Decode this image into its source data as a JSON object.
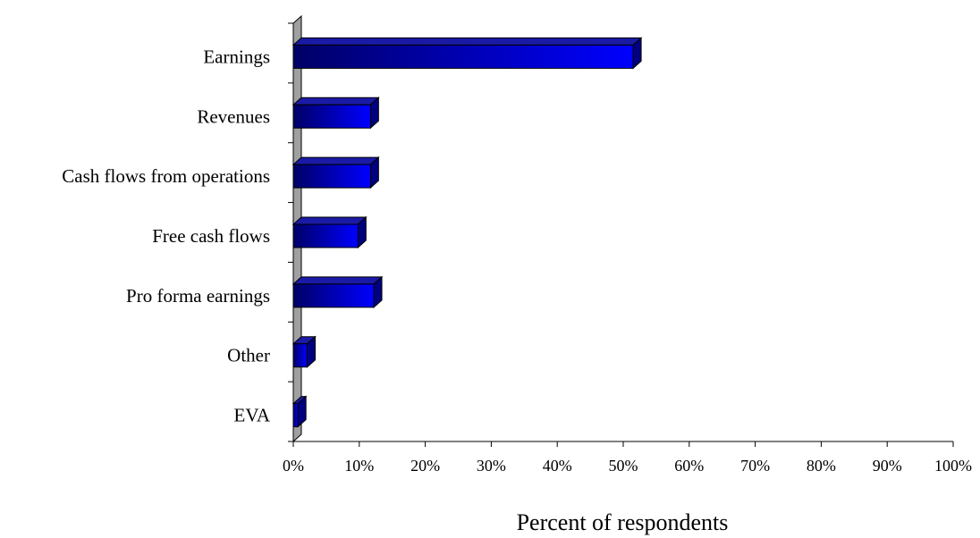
{
  "chart_data": {
    "type": "bar",
    "orientation": "horizontal",
    "categories": [
      "Earnings",
      "Revenues",
      "Cash flows from operations",
      "Free cash flows",
      "Pro forma earnings",
      "Other",
      "EVA"
    ],
    "values": [
      51.5,
      11.7,
      11.7,
      9.8,
      12.2,
      2.1,
      0.7
    ],
    "xlabel": "Percent of respondents",
    "ylabel": "",
    "xlim": [
      0,
      100
    ],
    "x_ticks": [
      "0%",
      "10%",
      "20%",
      "30%",
      "40%",
      "50%",
      "60%",
      "70%",
      "80%",
      "90%",
      "100%"
    ],
    "grid": false,
    "legend": "none",
    "style": "3d",
    "colors": {
      "bar_dark": "#000066",
      "bar_light": "#0000ff",
      "bar_top": "#1a1aa6",
      "bar_side": "#000080",
      "wall": "#a0a0a0"
    }
  }
}
